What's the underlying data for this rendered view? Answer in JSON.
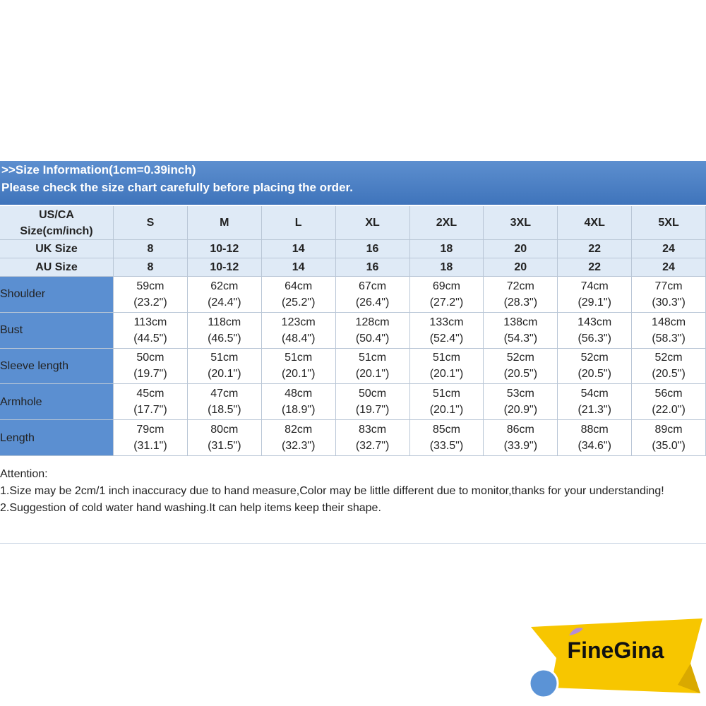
{
  "header": {
    "line1": ">>Size Information(1cm=0.39inch)",
    "line2": "Please check the size chart carefully before placing the order."
  },
  "table": {
    "corner": [
      "US/CA",
      "Size(cm/inch)"
    ],
    "sizes": [
      "S",
      "M",
      "L",
      "XL",
      "2XL",
      "3XL",
      "4XL",
      "5XL"
    ],
    "size_rows": [
      {
        "label": "UK Size",
        "values": [
          "8",
          "10-12",
          "14",
          "16",
          "18",
          "20",
          "22",
          "24"
        ]
      },
      {
        "label": "AU Size",
        "values": [
          "8",
          "10-12",
          "14",
          "16",
          "18",
          "20",
          "22",
          "24"
        ]
      }
    ],
    "rows": [
      {
        "label": "Shoulder",
        "cells": [
          [
            "59cm",
            "(23.2\")"
          ],
          [
            "62cm",
            "(24.4\")"
          ],
          [
            "64cm",
            "(25.2\")"
          ],
          [
            "67cm",
            "(26.4\")"
          ],
          [
            "69cm",
            "(27.2\")"
          ],
          [
            "72cm",
            "(28.3\")"
          ],
          [
            "74cm",
            "(29.1\")"
          ],
          [
            "77cm",
            "(30.3\")"
          ]
        ]
      },
      {
        "label": "Bust",
        "cells": [
          [
            "113cm",
            "(44.5\")"
          ],
          [
            "118cm",
            "(46.5\")"
          ],
          [
            "123cm",
            "(48.4\")"
          ],
          [
            "128cm",
            "(50.4\")"
          ],
          [
            "133cm",
            "(52.4\")"
          ],
          [
            "138cm",
            "(54.3\")"
          ],
          [
            "143cm",
            "(56.3\")"
          ],
          [
            "148cm",
            "(58.3\")"
          ]
        ]
      },
      {
        "label": "Sleeve length",
        "cells": [
          [
            "50cm",
            "(19.7\")"
          ],
          [
            "51cm",
            "(20.1\")"
          ],
          [
            "51cm",
            "(20.1\")"
          ],
          [
            "51cm",
            "(20.1\")"
          ],
          [
            "51cm",
            "(20.1\")"
          ],
          [
            "52cm",
            "(20.5\")"
          ],
          [
            "52cm",
            "(20.5\")"
          ],
          [
            "52cm",
            "(20.5\")"
          ]
        ]
      },
      {
        "label": "Armhole",
        "cells": [
          [
            "45cm",
            "(17.7\")"
          ],
          [
            "47cm",
            "(18.5\")"
          ],
          [
            "48cm",
            "(18.9\")"
          ],
          [
            "50cm",
            "(19.7\")"
          ],
          [
            "51cm",
            "(20.1\")"
          ],
          [
            "53cm",
            "(20.9\")"
          ],
          [
            "54cm",
            "(21.3\")"
          ],
          [
            "56cm",
            "(22.0\")"
          ]
        ]
      },
      {
        "label": "Length",
        "cells": [
          [
            "79cm",
            "(31.1\")"
          ],
          [
            "80cm",
            "(31.5\")"
          ],
          [
            "82cm",
            "(32.3\")"
          ],
          [
            "83cm",
            "(32.7\")"
          ],
          [
            "85cm",
            "(33.5\")"
          ],
          [
            "86cm",
            "(33.9\")"
          ],
          [
            "88cm",
            "(34.6\")"
          ],
          [
            "89cm",
            "(35.0\")"
          ]
        ]
      }
    ]
  },
  "notes": [
    "Attention:",
    "1.Size may be 2cm/1 inch inaccuracy due to hand measure,Color may be little different due to monitor,thanks for your understanding!",
    "2.Suggestion of cold water hand washing.It can help items keep their shape."
  ],
  "logo": "FineGina"
}
